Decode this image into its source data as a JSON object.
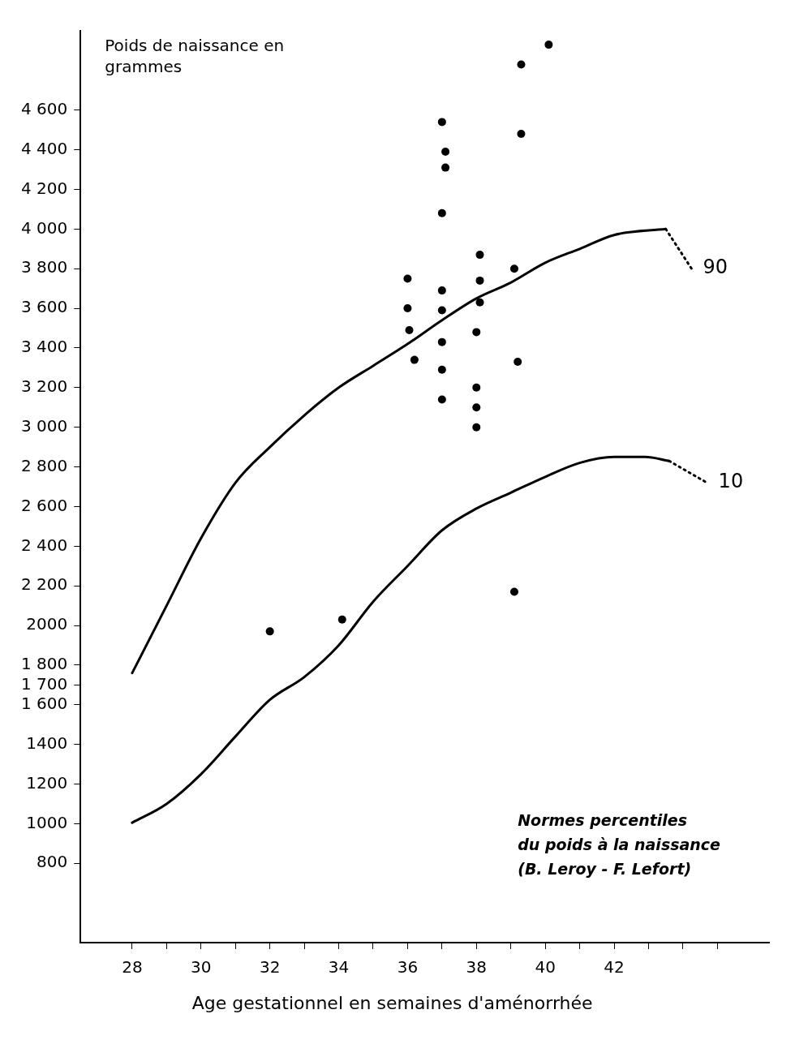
{
  "chart_data": {
    "type": "line",
    "ylabel": "Poids de naissance en grammes",
    "xlabel": "Age gestationnel en semaines d'aménorrhée",
    "annotations": [
      "Normes percentiles\ndu poids à la naissance\n(B. Leroy - F. Lefort)"
    ],
    "xlim": [
      26.5,
      46.5
    ],
    "xticks": [
      28,
      {
        "value": 29,
        "label": null
      },
      30,
      {
        "value": 31,
        "label": null
      },
      32,
      {
        "value": 33,
        "label": null
      },
      34,
      {
        "value": 35,
        "label": null
      },
      36,
      {
        "value": 37,
        "label": null
      },
      38,
      {
        "value": 39,
        "label": null
      },
      40,
      {
        "value": 41,
        "label": null
      },
      42,
      {
        "value": 43,
        "label": null
      },
      {
        "value": 44,
        "label": null
      },
      {
        "value": 45,
        "label": null
      }
    ],
    "ylim": [
      400,
      5000
    ],
    "yticks": [
      {
        "value": 800,
        "label": "800"
      },
      {
        "value": 1000,
        "label": "1000"
      },
      {
        "value": 1200,
        "label": "1200"
      },
      {
        "value": 1400,
        "label": "1400"
      },
      {
        "value": 1600,
        "label": "1 600"
      },
      {
        "value": 1700,
        "label": "1 700"
      },
      {
        "value": 1800,
        "label": "1 800"
      },
      {
        "value": 2000,
        "label": "2000"
      },
      {
        "value": 2200,
        "label": "2 200"
      },
      {
        "value": 2400,
        "label": "2 400"
      },
      {
        "value": 2600,
        "label": "2 600"
      },
      {
        "value": 2800,
        "label": "2 800"
      },
      {
        "value": 3000,
        "label": "3 000"
      },
      {
        "value": 3200,
        "label": "3 200"
      },
      {
        "value": 3400,
        "label": "3 400"
      },
      {
        "value": 3600,
        "label": "3 600"
      },
      {
        "value": 3800,
        "label": "3 800"
      },
      {
        "value": 4000,
        "label": "4 000"
      },
      {
        "value": 4200,
        "label": "4 200"
      },
      {
        "value": 4400,
        "label": "4 400"
      },
      {
        "value": 4600,
        "label": "4 600"
      }
    ],
    "grid": false,
    "legend": false,
    "series": [
      {
        "name": "90",
        "type": "line",
        "color": "#000000",
        "line_style": "solid",
        "marker": "none",
        "x": [
          28,
          29,
          30,
          31,
          32,
          33,
          34,
          35,
          36,
          37,
          38,
          39,
          40,
          41,
          42,
          43.5
        ],
        "values": [
          1760,
          2100,
          2440,
          2720,
          2900,
          3060,
          3200,
          3310,
          3420,
          3540,
          3650,
          3730,
          3830,
          3900,
          3970,
          4000
        ]
      },
      {
        "type": "line",
        "color": "#000000",
        "line_style": "dotted",
        "marker": "none",
        "x": [
          43.5,
          44.25
        ],
        "values": [
          4000,
          3800
        ]
      },
      {
        "name": "10",
        "type": "line",
        "color": "#000000",
        "line_style": "solid",
        "marker": "none",
        "x": [
          28,
          29,
          30,
          31,
          32,
          33,
          34,
          35,
          36,
          37,
          38,
          39,
          40,
          41,
          42,
          42.9,
          43.6
        ],
        "values": [
          1005,
          1100,
          1250,
          1440,
          1625,
          1740,
          1900,
          2120,
          2300,
          2480,
          2590,
          2670,
          2750,
          2820,
          2850,
          2850,
          2830
        ]
      },
      {
        "type": "line",
        "color": "#000000",
        "line_style": "dotted",
        "marker": "none",
        "x": [
          43.6,
          44.7
        ],
        "values": [
          2830,
          2720
        ]
      },
      {
        "type": "scatter",
        "color": "#000000",
        "marker": "circle",
        "x": [
          36.0,
          36.0,
          36.05,
          36.2,
          37.0,
          37.1,
          37.1,
          37.0,
          37.0,
          37.0,
          37.0,
          37.0,
          37.0,
          38.1,
          38.1,
          38.1,
          38.0,
          38.0,
          38.0,
          38.0,
          39.3,
          40.1,
          39.3,
          39.1,
          39.2,
          39.1,
          32.0,
          34.1
        ],
        "values": [
          3750,
          3600,
          3490,
          3340,
          4540,
          4390,
          4310,
          4080,
          3690,
          3590,
          3430,
          3290,
          3140,
          3870,
          3740,
          3630,
          3480,
          3200,
          3100,
          3000,
          4830,
          4930,
          4480,
          3800,
          3330,
          2170,
          1970,
          2030
        ]
      }
    ]
  }
}
